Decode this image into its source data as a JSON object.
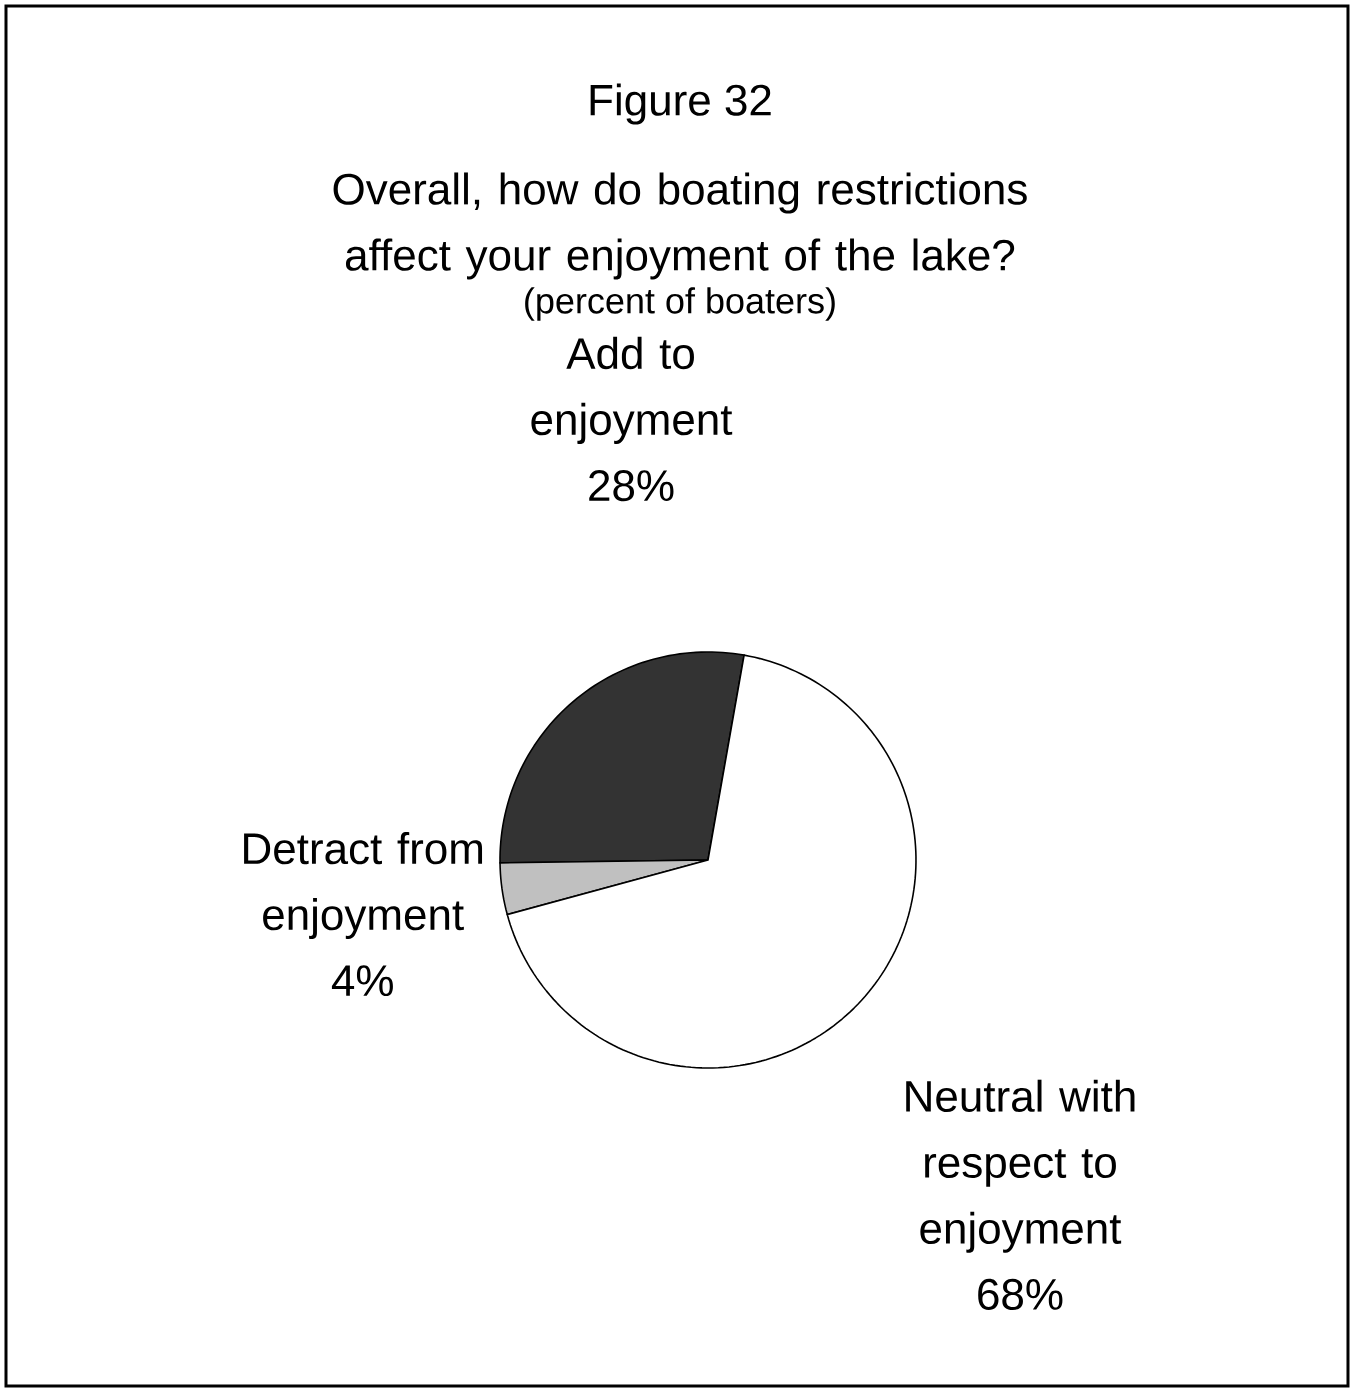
{
  "chart_data": {
    "type": "pie",
    "title": "Figure 32",
    "subtitle": "Overall, how do boating restrictions affect your enjoyment of the lake?",
    "annotations": [
      "(percent of boaters)"
    ],
    "categories": [
      "Add to enjoyment",
      "Detract from enjoyment",
      "Neutral with respect to enjoyment"
    ],
    "values": [
      28,
      4,
      68
    ],
    "colors": [
      "#333333",
      "#c0c0c0",
      "#ffffff"
    ],
    "value_labels": [
      "28%",
      "4%",
      "68%"
    ]
  }
}
